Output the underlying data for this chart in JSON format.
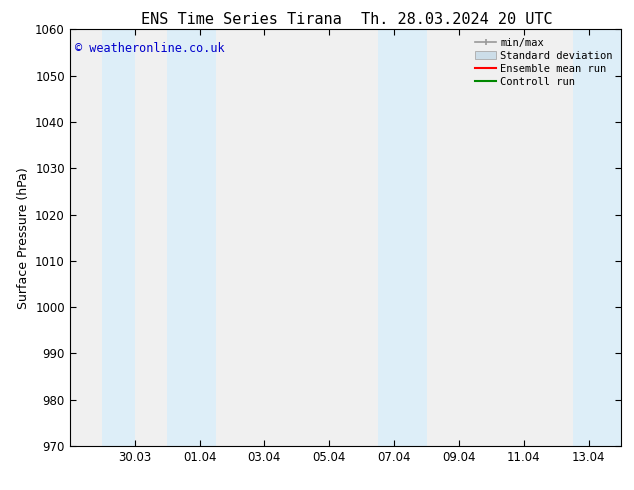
{
  "title_left": "ENS Time Series Tirana",
  "title_right": "Th. 28.03.2024 20 UTC",
  "ylabel": "Surface Pressure (hPa)",
  "ylim": [
    970,
    1060
  ],
  "yticks": [
    970,
    980,
    990,
    1000,
    1010,
    1020,
    1030,
    1040,
    1050,
    1060
  ],
  "xtick_labels": [
    "30.03",
    "01.04",
    "03.04",
    "05.04",
    "07.04",
    "09.04",
    "11.04",
    "13.04"
  ],
  "xtick_positions": [
    2,
    4,
    6,
    8,
    10,
    12,
    14,
    16
  ],
  "shaded_bands": [
    {
      "x_start": 1.0,
      "x_end": 2.0
    },
    {
      "x_start": 3.0,
      "x_end": 4.5
    },
    {
      "x_start": 9.5,
      "x_end": 11.0
    },
    {
      "x_start": 15.5,
      "x_end": 17.0
    }
  ],
  "shade_color": "#ddeef8",
  "watermark": "© weatheronline.co.uk",
  "watermark_color": "#0000cc",
  "legend_items": [
    {
      "label": "min/max",
      "color": "#999999",
      "type": "errorbar"
    },
    {
      "label": "Standard deviation",
      "color": "#ccdde8",
      "type": "band"
    },
    {
      "label": "Ensemble mean run",
      "color": "#ff0000",
      "type": "line"
    },
    {
      "label": "Controll run",
      "color": "#008800",
      "type": "line"
    }
  ],
  "background_color": "#ffffff",
  "plot_bg_color": "#f0f0f0",
  "title_fontsize": 11,
  "label_fontsize": 9,
  "tick_fontsize": 8.5,
  "legend_fontsize": 7.5,
  "xlim": [
    0.0,
    17.0
  ]
}
